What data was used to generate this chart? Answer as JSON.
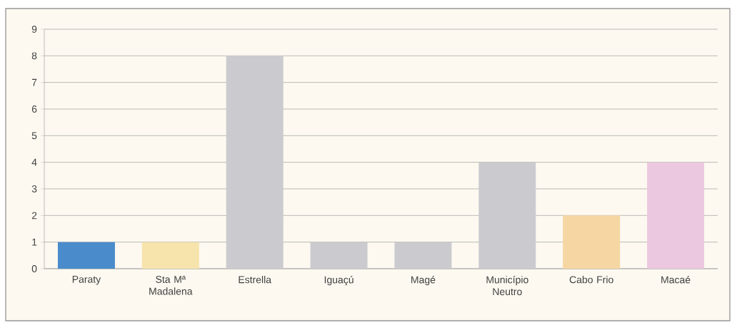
{
  "chart_data": {
    "type": "bar",
    "categories": [
      "Paraty",
      "Sta Mª Madalena",
      "Estrella",
      "Iguaçú",
      "Magé",
      "Município Neutro",
      "Cabo Frio",
      "Macaé"
    ],
    "values": [
      1,
      1,
      8,
      1,
      1,
      4,
      2,
      4
    ],
    "colors": [
      "#4a8ccb",
      "#f6e4ac",
      "#cbcbcf",
      "#cbcbcf",
      "#cbcbcf",
      "#cbcbcf",
      "#f6d6a2",
      "#ecc8e0"
    ],
    "ylim": [
      0,
      9
    ],
    "yticks": [
      0,
      1,
      2,
      3,
      4,
      5,
      6,
      7,
      8,
      9
    ],
    "grid": "y"
  }
}
